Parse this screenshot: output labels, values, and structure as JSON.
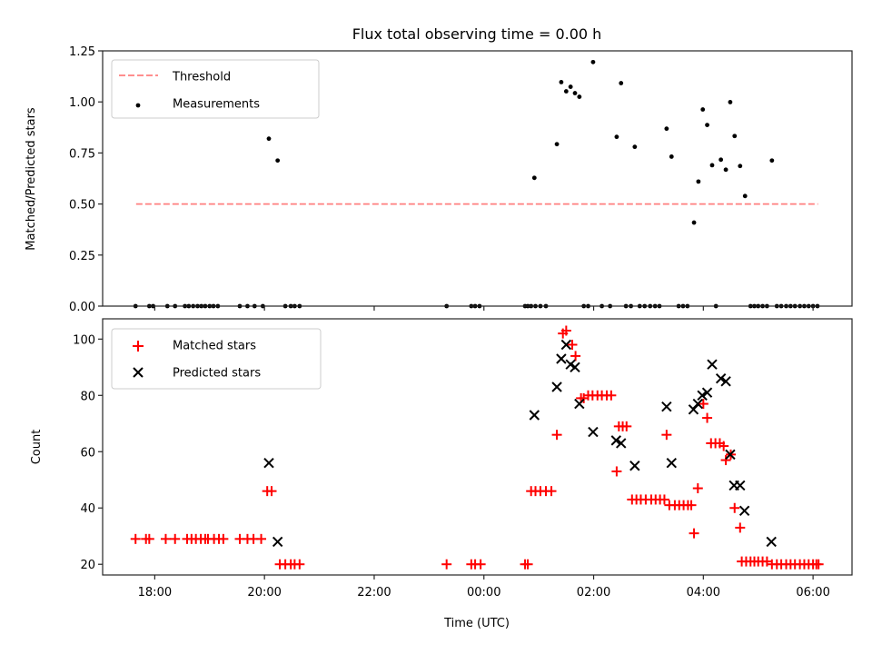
{
  "chart_data": [
    {
      "type": "scatter",
      "panel": "top",
      "title": "Flux total observing time = 0.00 h",
      "xlabel": "",
      "ylabel": "Matched/Predicted stars",
      "xlim_hours_rel_midnight": [
        -6.95,
        6.71
      ],
      "ylim": [
        0,
        1.25
      ],
      "yticks": [
        0.0,
        0.25,
        0.5,
        0.75,
        1.0,
        1.25
      ],
      "ytick_labels": [
        "0.00",
        "0.25",
        "0.50",
        "0.75",
        "1.00",
        "1.25"
      ],
      "xticks_hours_rel_midnight": [
        -6,
        -4,
        -2,
        0,
        2,
        4,
        6
      ],
      "xtick_labels_visible": false,
      "grid": false,
      "legend": {
        "placement": "upper-left",
        "entries": [
          "Threshold",
          "Measurements"
        ]
      },
      "series": [
        {
          "name": "Threshold",
          "kind": "dashed-line",
          "color": "#ff7f7f",
          "x_start": -6.34,
          "x_end": 6.09,
          "y": 0.5
        },
        {
          "name": "Measurements",
          "kind": "dots",
          "color": "#000000",
          "points": [
            [
              -3.92,
              0.82
            ],
            [
              -3.76,
              0.713
            ],
            [
              0.92,
              0.628
            ],
            [
              1.33,
              0.793
            ],
            [
              1.41,
              1.097
            ],
            [
              1.5,
              1.052
            ],
            [
              1.58,
              1.074
            ],
            [
              1.66,
              1.043
            ],
            [
              1.74,
              1.025
            ],
            [
              1.99,
              1.195
            ],
            [
              2.42,
              0.829
            ],
            [
              2.5,
              1.092
            ],
            [
              2.75,
              0.78
            ],
            [
              3.33,
              0.869
            ],
            [
              3.42,
              0.732
            ],
            [
              3.83,
              0.409
            ],
            [
              3.91,
              0.61
            ],
            [
              3.99,
              0.963
            ],
            [
              4.07,
              0.887
            ],
            [
              4.16,
              0.69
            ],
            [
              4.32,
              0.717
            ],
            [
              4.41,
              0.668
            ],
            [
              4.49,
              0.999
            ],
            [
              4.57,
              0.833
            ],
            [
              4.67,
              0.686
            ],
            [
              4.76,
              0.539
            ],
            [
              5.25,
              0.713
            ],
            [
              -6.35,
              0
            ],
            [
              -6.1,
              0
            ],
            [
              -6.03,
              0
            ],
            [
              -5.77,
              0
            ],
            [
              -5.63,
              0
            ],
            [
              -5.45,
              0
            ],
            [
              -5.38,
              0
            ],
            [
              -5.3,
              0
            ],
            [
              -5.22,
              0
            ],
            [
              -5.15,
              0
            ],
            [
              -5.08,
              0
            ],
            [
              -5.0,
              0
            ],
            [
              -4.93,
              0
            ],
            [
              -4.85,
              0
            ],
            [
              -4.45,
              0
            ],
            [
              -4.31,
              0
            ],
            [
              -4.18,
              0
            ],
            [
              -4.03,
              0
            ],
            [
              -3.62,
              0
            ],
            [
              -3.52,
              0
            ],
            [
              -3.45,
              0
            ],
            [
              -3.36,
              0
            ],
            [
              -0.68,
              0
            ],
            [
              -0.23,
              0
            ],
            [
              -0.16,
              0
            ],
            [
              -0.08,
              0
            ],
            [
              0.75,
              0
            ],
            [
              0.8,
              0
            ],
            [
              0.86,
              0
            ],
            [
              0.94,
              0
            ],
            [
              1.03,
              0
            ],
            [
              1.13,
              0
            ],
            [
              1.82,
              0
            ],
            [
              1.9,
              0
            ],
            [
              2.15,
              0
            ],
            [
              2.3,
              0
            ],
            [
              2.59,
              0
            ],
            [
              2.68,
              0
            ],
            [
              2.84,
              0
            ],
            [
              2.93,
              0
            ],
            [
              3.03,
              0
            ],
            [
              3.12,
              0
            ],
            [
              3.2,
              0
            ],
            [
              3.55,
              0
            ],
            [
              3.63,
              0
            ],
            [
              3.71,
              0
            ],
            [
              4.23,
              0
            ],
            [
              4.86,
              0
            ],
            [
              4.93,
              0
            ],
            [
              5.0,
              0
            ],
            [
              5.08,
              0
            ],
            [
              5.16,
              0
            ],
            [
              5.34,
              0
            ],
            [
              5.42,
              0
            ],
            [
              5.51,
              0
            ],
            [
              5.59,
              0
            ],
            [
              5.67,
              0
            ],
            [
              5.76,
              0
            ],
            [
              5.84,
              0
            ],
            [
              5.92,
              0
            ],
            [
              6.0,
              0
            ],
            [
              6.08,
              0
            ]
          ]
        }
      ]
    },
    {
      "type": "scatter",
      "panel": "bottom",
      "title": "",
      "xlabel": "Time (UTC)",
      "ylabel": "Count",
      "xlim_hours_rel_midnight": [
        -6.95,
        6.71
      ],
      "ylim": [
        16.2,
        107.2
      ],
      "yticks": [
        20,
        40,
        60,
        80,
        100
      ],
      "ytick_labels": [
        "20",
        "40",
        "60",
        "80",
        "100"
      ],
      "xticks_hours_rel_midnight": [
        -6,
        -4,
        -2,
        0,
        2,
        4,
        6
      ],
      "xtick_labels": [
        "18:00",
        "20:00",
        "22:00",
        "00:00",
        "02:00",
        "04:00",
        "06:00"
      ],
      "grid": false,
      "legend": {
        "placement": "upper-left",
        "entries": [
          "Matched stars",
          "Predicted stars"
        ]
      },
      "series": [
        {
          "name": "Matched stars",
          "marker": "plus",
          "color": "#ff0000",
          "points": [
            [
              -6.35,
              29
            ],
            [
              -6.16,
              29
            ],
            [
              -6.1,
              29
            ],
            [
              -5.8,
              29
            ],
            [
              -5.63,
              29
            ],
            [
              -5.41,
              29
            ],
            [
              -5.33,
              29
            ],
            [
              -5.25,
              29
            ],
            [
              -5.16,
              29
            ],
            [
              -5.08,
              29
            ],
            [
              -5.03,
              29
            ],
            [
              -4.92,
              29
            ],
            [
              -4.83,
              29
            ],
            [
              -4.75,
              29
            ],
            [
              -4.45,
              29
            ],
            [
              -4.31,
              29
            ],
            [
              -4.2,
              29
            ],
            [
              -4.06,
              29
            ],
            [
              -3.95,
              46
            ],
            [
              -3.87,
              46
            ],
            [
              -3.72,
              20
            ],
            [
              -3.62,
              20
            ],
            [
              -3.52,
              20
            ],
            [
              -3.45,
              20
            ],
            [
              -3.36,
              20
            ],
            [
              -0.68,
              20
            ],
            [
              -0.23,
              20
            ],
            [
              -0.16,
              20
            ],
            [
              -0.06,
              20
            ],
            [
              0.75,
              20
            ],
            [
              0.8,
              20
            ],
            [
              0.86,
              46
            ],
            [
              0.94,
              46
            ],
            [
              1.03,
              46
            ],
            [
              1.13,
              46
            ],
            [
              1.23,
              46
            ],
            [
              1.33,
              66
            ],
            [
              1.44,
              102
            ],
            [
              1.5,
              103
            ],
            [
              1.61,
              98
            ],
            [
              1.67,
              94
            ],
            [
              1.77,
              79
            ],
            [
              1.82,
              79
            ],
            [
              1.9,
              80
            ],
            [
              1.98,
              80
            ],
            [
              2.07,
              80
            ],
            [
              2.15,
              80
            ],
            [
              2.24,
              80
            ],
            [
              2.32,
              80
            ],
            [
              2.42,
              53
            ],
            [
              2.46,
              69
            ],
            [
              2.53,
              69
            ],
            [
              2.6,
              69
            ],
            [
              2.7,
              43
            ],
            [
              2.78,
              43
            ],
            [
              2.86,
              43
            ],
            [
              2.95,
              43
            ],
            [
              3.05,
              43
            ],
            [
              3.13,
              43
            ],
            [
              3.21,
              43
            ],
            [
              3.29,
              43
            ],
            [
              3.33,
              66
            ],
            [
              3.38,
              41
            ],
            [
              3.48,
              41
            ],
            [
              3.56,
              41
            ],
            [
              3.64,
              41
            ],
            [
              3.72,
              41
            ],
            [
              3.78,
              41
            ],
            [
              3.83,
              31
            ],
            [
              3.9,
              47
            ],
            [
              4.0,
              77
            ],
            [
              4.07,
              72
            ],
            [
              4.14,
              63
            ],
            [
              4.22,
              63
            ],
            [
              4.3,
              63
            ],
            [
              4.37,
              62
            ],
            [
              4.41,
              57
            ],
            [
              4.5,
              59
            ],
            [
              4.57,
              40
            ],
            [
              4.67,
              33
            ],
            [
              4.7,
              21
            ],
            [
              4.78,
              21
            ],
            [
              4.86,
              21
            ],
            [
              4.93,
              21
            ],
            [
              5.0,
              21
            ],
            [
              5.08,
              21
            ],
            [
              5.16,
              21
            ],
            [
              5.25,
              20
            ],
            [
              5.34,
              20
            ],
            [
              5.42,
              20
            ],
            [
              5.51,
              20
            ],
            [
              5.59,
              20
            ],
            [
              5.67,
              20
            ],
            [
              5.76,
              20
            ],
            [
              5.84,
              20
            ],
            [
              5.92,
              20
            ],
            [
              6.0,
              20
            ],
            [
              6.06,
              20
            ],
            [
              6.1,
              20
            ]
          ]
        },
        {
          "name": "Predicted stars",
          "marker": "x",
          "color": "#000000",
          "points": [
            [
              -3.92,
              56
            ],
            [
              -3.76,
              28
            ],
            [
              0.92,
              73
            ],
            [
              1.33,
              83
            ],
            [
              1.41,
              93
            ],
            [
              1.5,
              98
            ],
            [
              1.58,
              91
            ],
            [
              1.66,
              90
            ],
            [
              1.74,
              77
            ],
            [
              1.99,
              67
            ],
            [
              2.41,
              64
            ],
            [
              2.5,
              63
            ],
            [
              2.75,
              55
            ],
            [
              3.33,
              76
            ],
            [
              3.42,
              56
            ],
            [
              3.82,
              75
            ],
            [
              3.9,
              77
            ],
            [
              3.98,
              80
            ],
            [
              4.07,
              81
            ],
            [
              4.16,
              91
            ],
            [
              4.32,
              86
            ],
            [
              4.41,
              85
            ],
            [
              4.49,
              59
            ],
            [
              4.56,
              48
            ],
            [
              4.67,
              48
            ],
            [
              4.75,
              39
            ],
            [
              5.24,
              28
            ]
          ]
        }
      ]
    }
  ]
}
